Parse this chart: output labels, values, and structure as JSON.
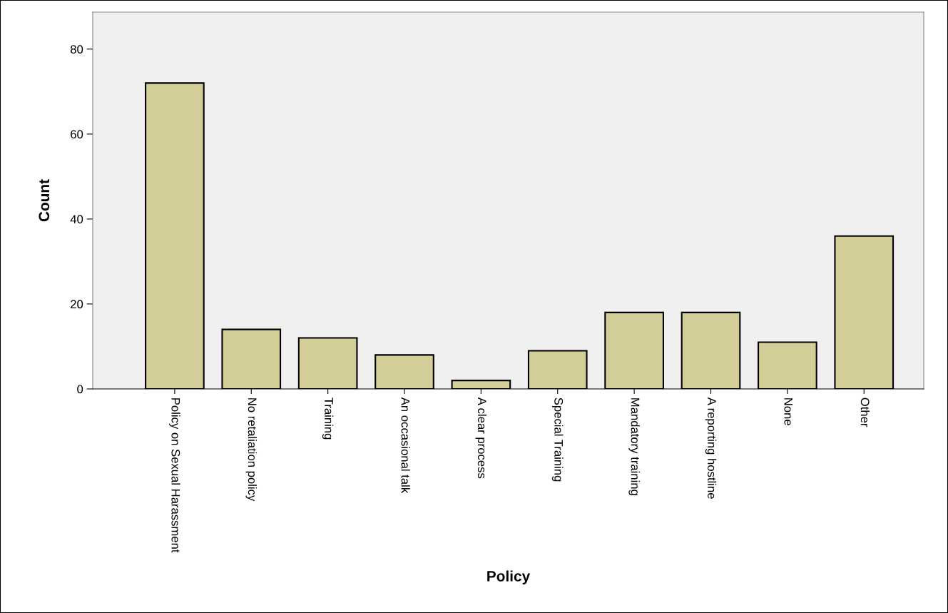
{
  "chart_data": {
    "type": "bar",
    "xlabel": "Policy",
    "ylabel": "Count",
    "categories": [
      "Policy on Sexual Harassment",
      "No retaliation policy",
      "Training",
      "An occasional talk",
      "A clear process",
      "Special Training",
      "Mandatory training",
      "A reporting hostline",
      "None",
      "Other"
    ],
    "values": [
      72,
      14,
      12,
      8,
      2,
      9,
      18,
      18,
      11,
      36
    ],
    "color": "#d3ce97",
    "ylim": [
      0,
      88.7
    ],
    "yticks": [
      0,
      20,
      40,
      60,
      80
    ],
    "grid": false,
    "legend": false
  }
}
